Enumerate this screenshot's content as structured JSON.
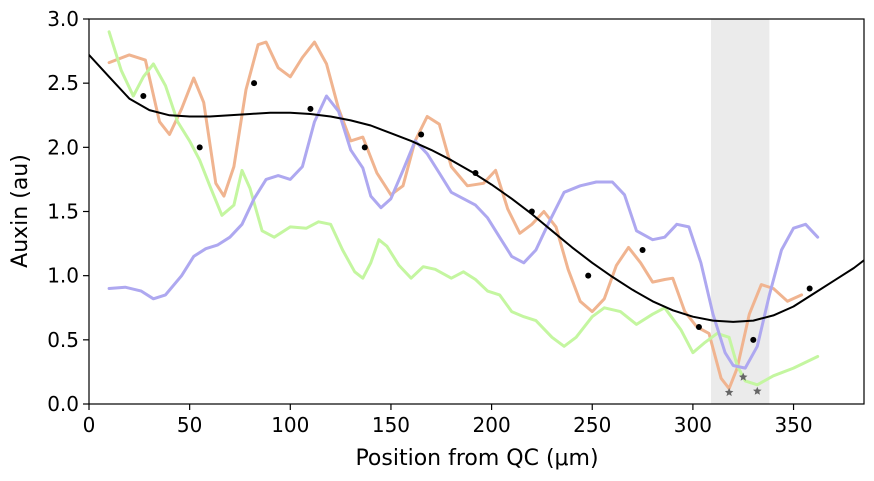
{
  "chart_data": {
    "type": "line",
    "xlabel": "Position from QC (μm)",
    "ylabel": "Auxin (au)",
    "xlim": [
      0,
      385
    ],
    "ylim": [
      0,
      3.0
    ],
    "x_ticks": [
      0,
      50,
      100,
      150,
      200,
      250,
      300,
      350
    ],
    "x_tick_labels": [
      "0",
      "50",
      "100",
      "150",
      "200",
      "250",
      "300",
      "350"
    ],
    "y_ticks": [
      0.0,
      0.5,
      1.0,
      1.5,
      2.0,
      2.5,
      3.0
    ],
    "y_tick_labels": [
      "0.0",
      "0.5",
      "1.0",
      "1.5",
      "2.0",
      "2.5",
      "3.0"
    ],
    "shaded_region": {
      "x": [
        309,
        338
      ],
      "color": "#ebebeb"
    },
    "series": [
      {
        "kind": "line",
        "color": "#f0b490",
        "points": [
          [
            10,
            2.66
          ],
          [
            20,
            2.72
          ],
          [
            28,
            2.68
          ],
          [
            35,
            2.2
          ],
          [
            40,
            2.1
          ],
          [
            46,
            2.3
          ],
          [
            52,
            2.54
          ],
          [
            57,
            2.35
          ],
          [
            63,
            1.72
          ],
          [
            67,
            1.62
          ],
          [
            72,
            1.85
          ],
          [
            78,
            2.45
          ],
          [
            84,
            2.8
          ],
          [
            88,
            2.82
          ],
          [
            94,
            2.62
          ],
          [
            100,
            2.55
          ],
          [
            106,
            2.7
          ],
          [
            112,
            2.82
          ],
          [
            118,
            2.65
          ],
          [
            124,
            2.3
          ],
          [
            130,
            2.05
          ],
          [
            136,
            2.08
          ],
          [
            143,
            1.8
          ],
          [
            150,
            1.63
          ],
          [
            156,
            1.7
          ],
          [
            162,
            2.05
          ],
          [
            168,
            2.24
          ],
          [
            174,
            2.18
          ],
          [
            180,
            1.85
          ],
          [
            188,
            1.7
          ],
          [
            196,
            1.72
          ],
          [
            202,
            1.82
          ],
          [
            208,
            1.52
          ],
          [
            214,
            1.33
          ],
          [
            220,
            1.4
          ],
          [
            226,
            1.5
          ],
          [
            232,
            1.38
          ],
          [
            238,
            1.05
          ],
          [
            244,
            0.8
          ],
          [
            250,
            0.72
          ],
          [
            256,
            0.82
          ],
          [
            262,
            1.08
          ],
          [
            268,
            1.22
          ],
          [
            274,
            1.1
          ],
          [
            280,
            0.95
          ],
          [
            286,
            0.97
          ],
          [
            290,
            0.98
          ],
          [
            296,
            0.72
          ],
          [
            302,
            0.6
          ],
          [
            308,
            0.55
          ],
          [
            314,
            0.2
          ],
          [
            318,
            0.12
          ],
          [
            322,
            0.28
          ],
          [
            328,
            0.7
          ],
          [
            334,
            0.93
          ],
          [
            340,
            0.9
          ],
          [
            347,
            0.8
          ],
          [
            354,
            0.85
          ]
        ]
      },
      {
        "kind": "line",
        "color": "#c4f6a0",
        "points": [
          [
            10,
            2.9
          ],
          [
            16,
            2.6
          ],
          [
            22,
            2.4
          ],
          [
            27,
            2.55
          ],
          [
            32,
            2.65
          ],
          [
            38,
            2.48
          ],
          [
            44,
            2.2
          ],
          [
            50,
            2.05
          ],
          [
            55,
            1.9
          ],
          [
            60,
            1.7
          ],
          [
            66,
            1.47
          ],
          [
            72,
            1.55
          ],
          [
            76,
            1.82
          ],
          [
            80,
            1.68
          ],
          [
            86,
            1.35
          ],
          [
            92,
            1.3
          ],
          [
            100,
            1.38
          ],
          [
            108,
            1.37
          ],
          [
            114,
            1.42
          ],
          [
            120,
            1.4
          ],
          [
            126,
            1.2
          ],
          [
            132,
            1.03
          ],
          [
            136,
            0.98
          ],
          [
            140,
            1.1
          ],
          [
            144,
            1.28
          ],
          [
            148,
            1.23
          ],
          [
            154,
            1.08
          ],
          [
            160,
            0.98
          ],
          [
            166,
            1.07
          ],
          [
            172,
            1.05
          ],
          [
            180,
            0.98
          ],
          [
            186,
            1.03
          ],
          [
            192,
            0.97
          ],
          [
            198,
            0.88
          ],
          [
            204,
            0.85
          ],
          [
            210,
            0.72
          ],
          [
            216,
            0.68
          ],
          [
            222,
            0.65
          ],
          [
            230,
            0.52
          ],
          [
            236,
            0.45
          ],
          [
            242,
            0.52
          ],
          [
            250,
            0.68
          ],
          [
            256,
            0.75
          ],
          [
            264,
            0.72
          ],
          [
            272,
            0.62
          ],
          [
            280,
            0.7
          ],
          [
            286,
            0.75
          ],
          [
            294,
            0.58
          ],
          [
            300,
            0.4
          ],
          [
            306,
            0.48
          ],
          [
            312,
            0.55
          ],
          [
            318,
            0.52
          ],
          [
            322,
            0.3
          ],
          [
            326,
            0.18
          ],
          [
            332,
            0.15
          ],
          [
            340,
            0.22
          ],
          [
            350,
            0.28
          ],
          [
            362,
            0.37
          ]
        ]
      },
      {
        "kind": "line",
        "color": "#aea8f0",
        "points": [
          [
            10,
            0.9
          ],
          [
            18,
            0.91
          ],
          [
            26,
            0.88
          ],
          [
            32,
            0.82
          ],
          [
            38,
            0.85
          ],
          [
            46,
            1.0
          ],
          [
            52,
            1.15
          ],
          [
            58,
            1.21
          ],
          [
            64,
            1.24
          ],
          [
            70,
            1.3
          ],
          [
            76,
            1.4
          ],
          [
            82,
            1.6
          ],
          [
            88,
            1.75
          ],
          [
            94,
            1.78
          ],
          [
            100,
            1.75
          ],
          [
            106,
            1.85
          ],
          [
            112,
            2.2
          ],
          [
            118,
            2.4
          ],
          [
            124,
            2.28
          ],
          [
            130,
            1.98
          ],
          [
            136,
            1.84
          ],
          [
            140,
            1.62
          ],
          [
            145,
            1.53
          ],
          [
            150,
            1.6
          ],
          [
            156,
            1.82
          ],
          [
            162,
            2.05
          ],
          [
            168,
            1.95
          ],
          [
            174,
            1.8
          ],
          [
            180,
            1.65
          ],
          [
            186,
            1.6
          ],
          [
            192,
            1.55
          ],
          [
            198,
            1.45
          ],
          [
            204,
            1.3
          ],
          [
            210,
            1.15
          ],
          [
            216,
            1.1
          ],
          [
            222,
            1.2
          ],
          [
            228,
            1.4
          ],
          [
            236,
            1.65
          ],
          [
            244,
            1.7
          ],
          [
            252,
            1.73
          ],
          [
            260,
            1.73
          ],
          [
            266,
            1.63
          ],
          [
            272,
            1.35
          ],
          [
            280,
            1.28
          ],
          [
            286,
            1.3
          ],
          [
            292,
            1.4
          ],
          [
            298,
            1.38
          ],
          [
            304,
            1.1
          ],
          [
            310,
            0.7
          ],
          [
            316,
            0.4
          ],
          [
            320,
            0.3
          ],
          [
            326,
            0.28
          ],
          [
            332,
            0.45
          ],
          [
            338,
            0.85
          ],
          [
            344,
            1.2
          ],
          [
            350,
            1.37
          ],
          [
            356,
            1.4
          ],
          [
            362,
            1.3
          ]
        ]
      },
      {
        "kind": "scatter",
        "color": "#000000",
        "points": [
          [
            27,
            2.4
          ],
          [
            55,
            2.0
          ],
          [
            82,
            2.5
          ],
          [
            110,
            2.3
          ],
          [
            137,
            2.0
          ],
          [
            165,
            2.1
          ],
          [
            192,
            1.8
          ],
          [
            220,
            1.5
          ],
          [
            248,
            1.0
          ],
          [
            275,
            1.2
          ],
          [
            303,
            0.6
          ],
          [
            330,
            0.5
          ],
          [
            358,
            0.9
          ]
        ]
      },
      {
        "kind": "line",
        "color": "#000000",
        "points": [
          [
            0,
            2.72
          ],
          [
            10,
            2.55
          ],
          [
            20,
            2.38
          ],
          [
            30,
            2.29
          ],
          [
            40,
            2.25
          ],
          [
            50,
            2.24
          ],
          [
            60,
            2.24
          ],
          [
            70,
            2.25
          ],
          [
            80,
            2.26
          ],
          [
            90,
            2.27
          ],
          [
            100,
            2.27
          ],
          [
            110,
            2.26
          ],
          [
            120,
            2.24
          ],
          [
            130,
            2.21
          ],
          [
            140,
            2.17
          ],
          [
            150,
            2.11
          ],
          [
            160,
            2.05
          ],
          [
            170,
            1.98
          ],
          [
            180,
            1.9
          ],
          [
            190,
            1.81
          ],
          [
            200,
            1.71
          ],
          [
            210,
            1.6
          ],
          [
            220,
            1.48
          ],
          [
            230,
            1.35
          ],
          [
            240,
            1.22
          ],
          [
            250,
            1.1
          ],
          [
            260,
            0.99
          ],
          [
            270,
            0.89
          ],
          [
            280,
            0.8
          ],
          [
            290,
            0.73
          ],
          [
            300,
            0.68
          ],
          [
            310,
            0.65
          ],
          [
            320,
            0.64
          ],
          [
            330,
            0.65
          ],
          [
            340,
            0.69
          ],
          [
            350,
            0.76
          ],
          [
            360,
            0.86
          ],
          [
            370,
            0.96
          ],
          [
            380,
            1.06
          ],
          [
            385,
            1.12
          ]
        ]
      },
      {
        "kind": "markers",
        "marker": "star",
        "color": "#666666",
        "points": [
          [
            318,
            0.09
          ],
          [
            325,
            0.21
          ],
          [
            332,
            0.1
          ]
        ]
      }
    ]
  }
}
